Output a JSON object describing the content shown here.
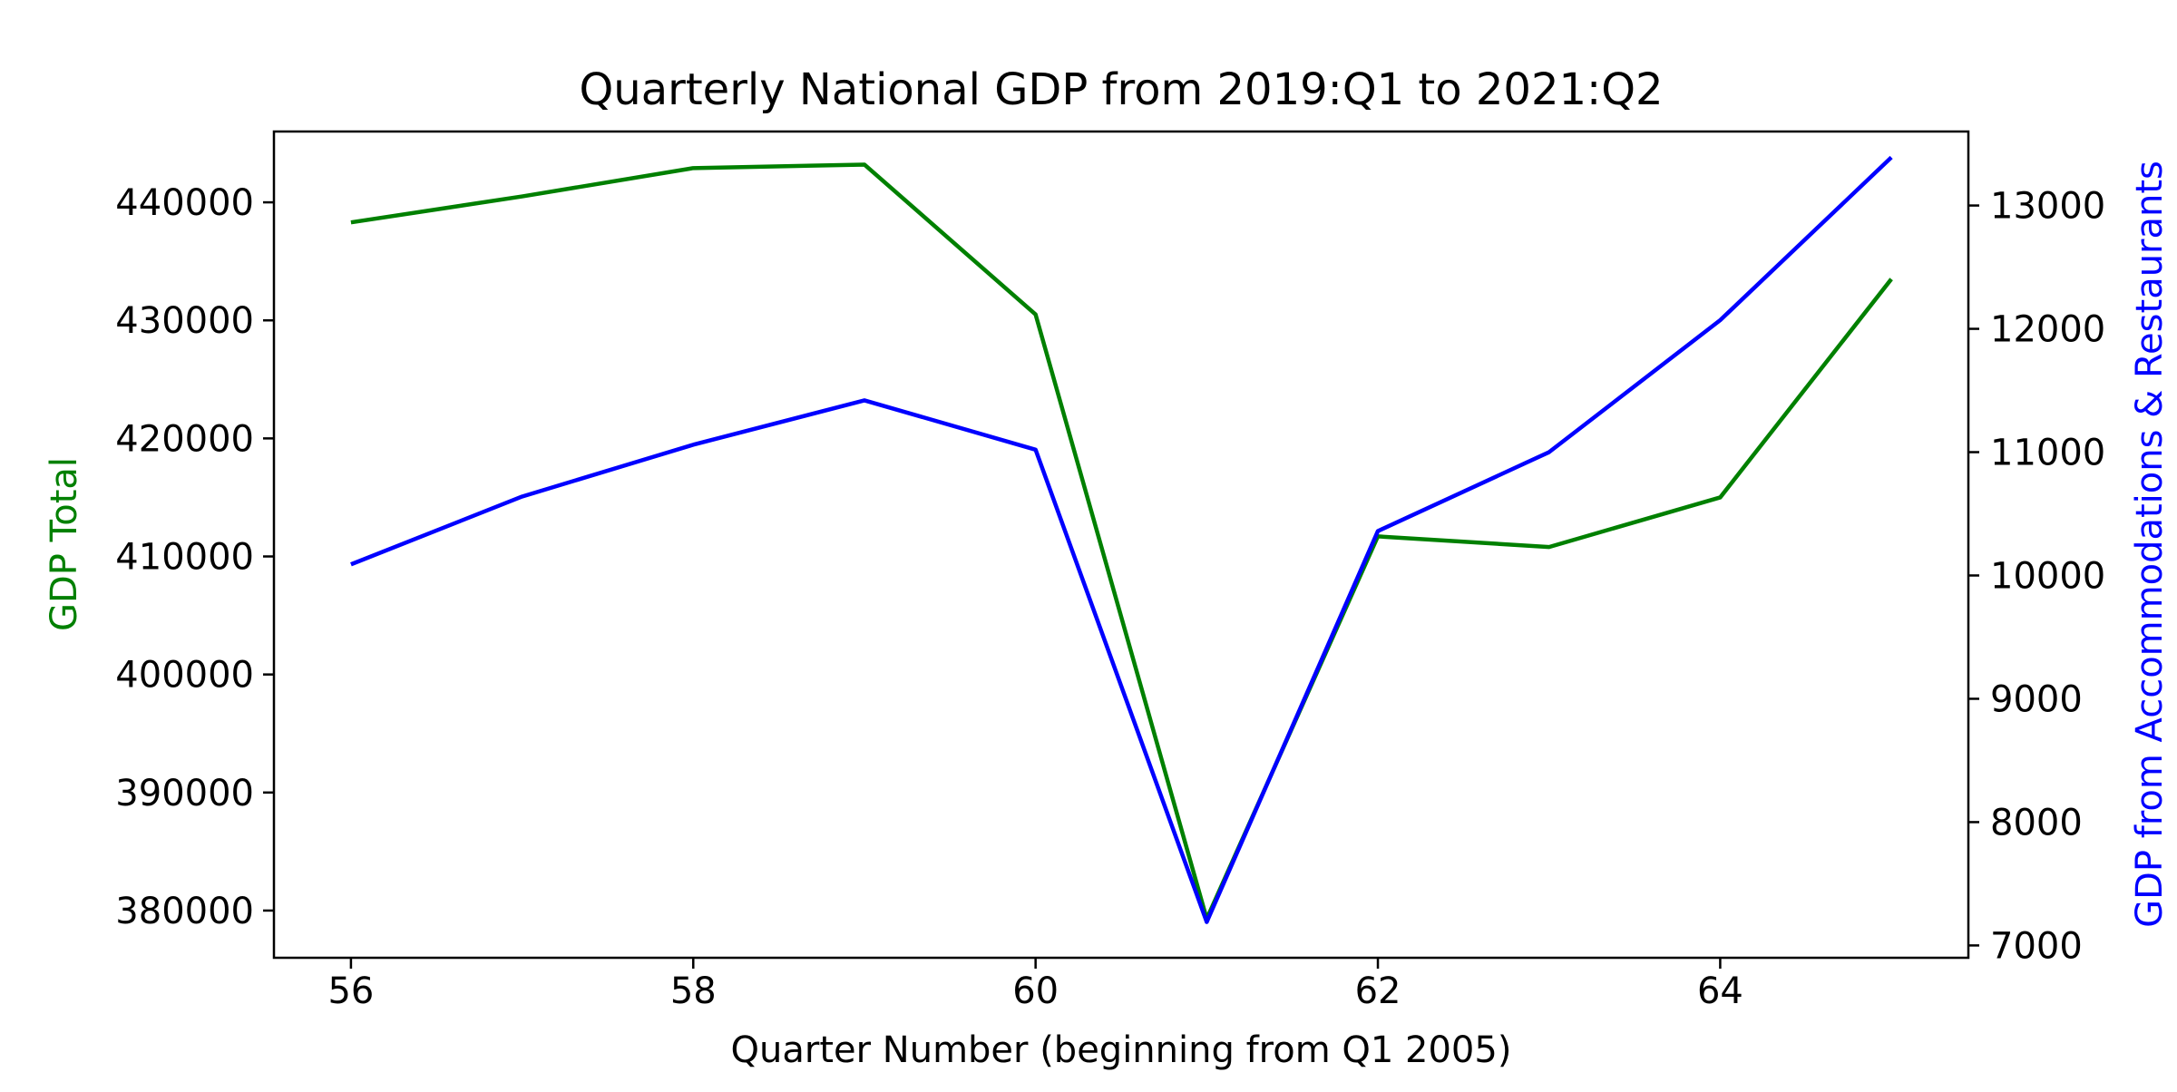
{
  "chart_data": {
    "type": "line",
    "title": "Quarterly National GDP from 2019:Q1 to 2021:Q2",
    "xlabel": "Quarter Number (beginning from Q1 2005)",
    "x": [
      56,
      57,
      58,
      59,
      60,
      61,
      62,
      63,
      64,
      65
    ],
    "xlim": [
      55.55,
      65.45
    ],
    "xticks": [
      "56",
      "58",
      "60",
      "62",
      "64"
    ],
    "grid": false,
    "legend": "none",
    "axes": {
      "left": {
        "label": "GDP Total",
        "color": "#008000",
        "ylim": [
          376000,
          446000
        ],
        "ticks": [
          "380000",
          "390000",
          "400000",
          "410000",
          "420000",
          "430000",
          "440000"
        ]
      },
      "right": {
        "label": "GDP from Accommodations & Restaurants",
        "color": "#0000ff",
        "ylim": [
          6900,
          13600
        ],
        "ticks": [
          "7000",
          "8000",
          "9000",
          "10000",
          "11000",
          "12000",
          "13000"
        ]
      }
    },
    "series": [
      {
        "axis": "left",
        "color": "#008000",
        "values": [
          438300,
          440500,
          442900,
          443200,
          430500,
          379300,
          411700,
          410800,
          415000,
          433500
        ]
      },
      {
        "axis": "right",
        "color": "#0000ff",
        "values": [
          10090,
          10640,
          11060,
          11420,
          11020,
          7190,
          10360,
          11000,
          12070,
          13390
        ]
      }
    ]
  }
}
